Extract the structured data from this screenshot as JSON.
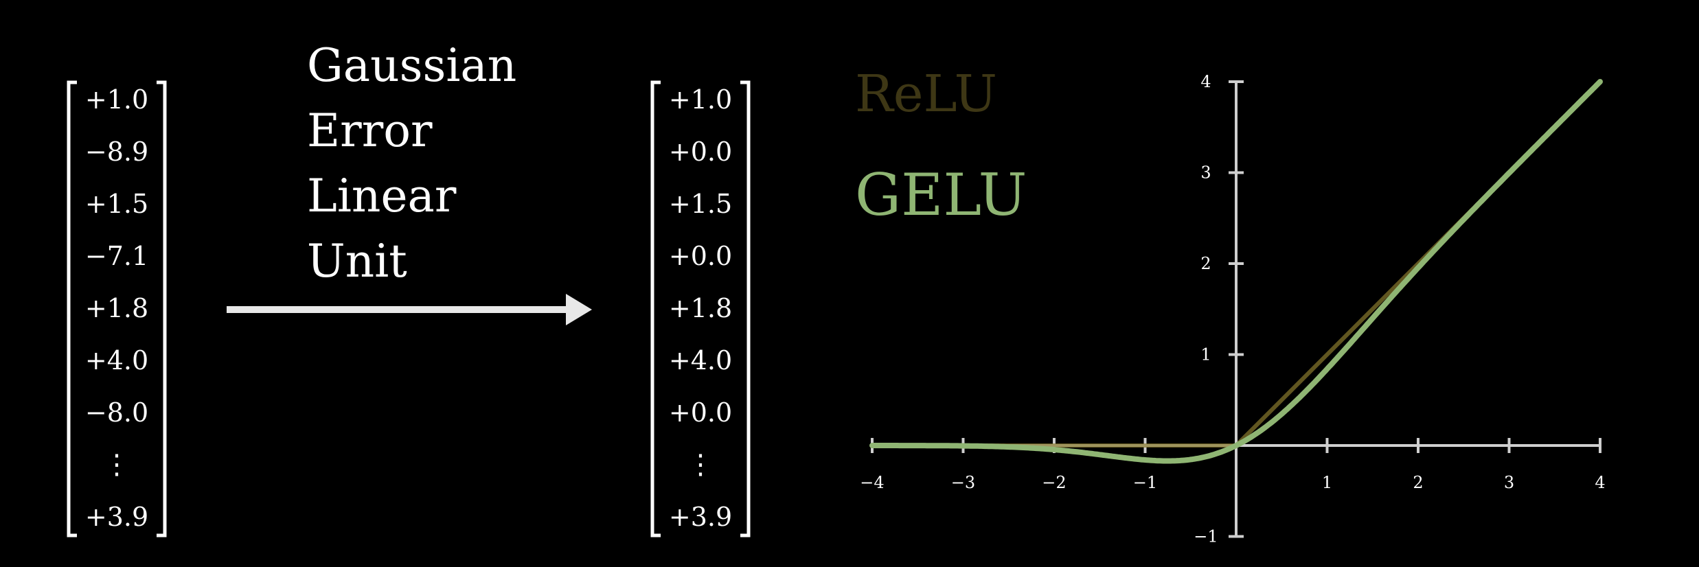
{
  "input_vector": [
    "+1.0",
    "−8.9",
    "+1.5",
    "−7.1",
    "+1.8",
    "+4.0",
    "−8.0",
    "⋮",
    "+3.9"
  ],
  "output_vector": [
    "+1.0",
    "+0.0",
    "+1.5",
    "+0.0",
    "+1.8",
    "+4.0",
    "+0.0",
    "⋮",
    "+3.9"
  ],
  "function_name_lines": [
    "Gaussian",
    "Error",
    "Linear",
    "Unit"
  ],
  "colors": {
    "background": "#000000",
    "text": "#ffffff",
    "arrow": "#e8e8e8",
    "axis": "#cfcfcf",
    "relu": "#8a7b2e",
    "gelu": "#8fb573"
  },
  "chart_data": {
    "type": "line",
    "legend": [
      {
        "name": "ReLU",
        "faded": true
      },
      {
        "name": "GELU",
        "faded": false
      }
    ],
    "xlim": [
      -4,
      4
    ],
    "ylim": [
      -1,
      4
    ],
    "x_ticks": [
      "−4",
      "−3",
      "−2",
      "−1",
      "1",
      "2",
      "3",
      "4"
    ],
    "y_ticks": [
      "−1",
      "1",
      "2",
      "3",
      "4"
    ],
    "grid": false,
    "series": [
      {
        "name": "ReLU",
        "function": "max(0, x)",
        "x": [
          -4,
          0,
          4
        ],
        "y": [
          0,
          0,
          4
        ]
      },
      {
        "name": "GELU",
        "function": "x·Φ(x)",
        "x": [
          -4,
          -3,
          -2,
          -1.5,
          -1,
          -0.75,
          -0.5,
          -0.25,
          0,
          0.5,
          1,
          1.5,
          2,
          3,
          4
        ],
        "y": [
          0,
          -0.004,
          -0.045,
          -0.1,
          -0.159,
          -0.17,
          -0.154,
          -0.1,
          0,
          0.346,
          0.841,
          1.4,
          1.955,
          2.996,
          4
        ]
      }
    ]
  }
}
